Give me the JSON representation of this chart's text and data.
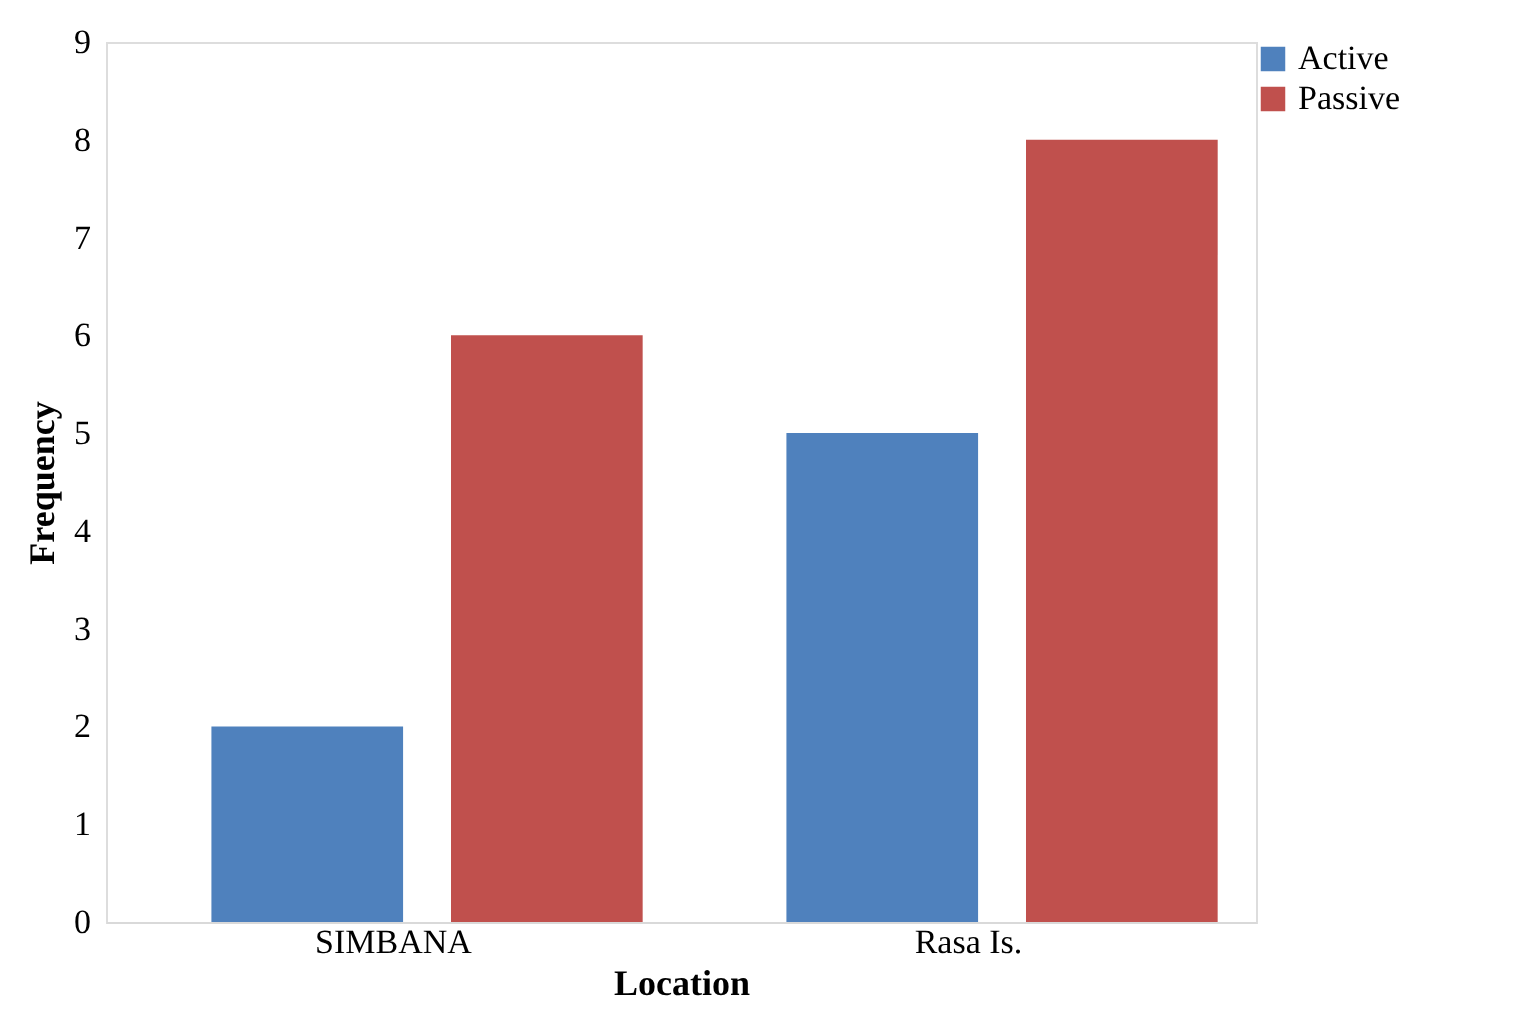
{
  "chart_data": {
    "type": "bar",
    "xlabel": "Location",
    "ylabel": "Frequency",
    "categories": [
      "SIMBANA",
      "Rasa Is."
    ],
    "series": [
      {
        "name": "Active",
        "color": "#4f81bd",
        "values": [
          2,
          5
        ]
      },
      {
        "name": "Passive",
        "color": "#c0504d",
        "values": [
          6,
          8
        ]
      }
    ],
    "ylim": [
      0,
      9
    ],
    "yticks": [
      0,
      1,
      2,
      3,
      4,
      5,
      6,
      7,
      8,
      9
    ],
    "grid": false,
    "legend": "right"
  }
}
